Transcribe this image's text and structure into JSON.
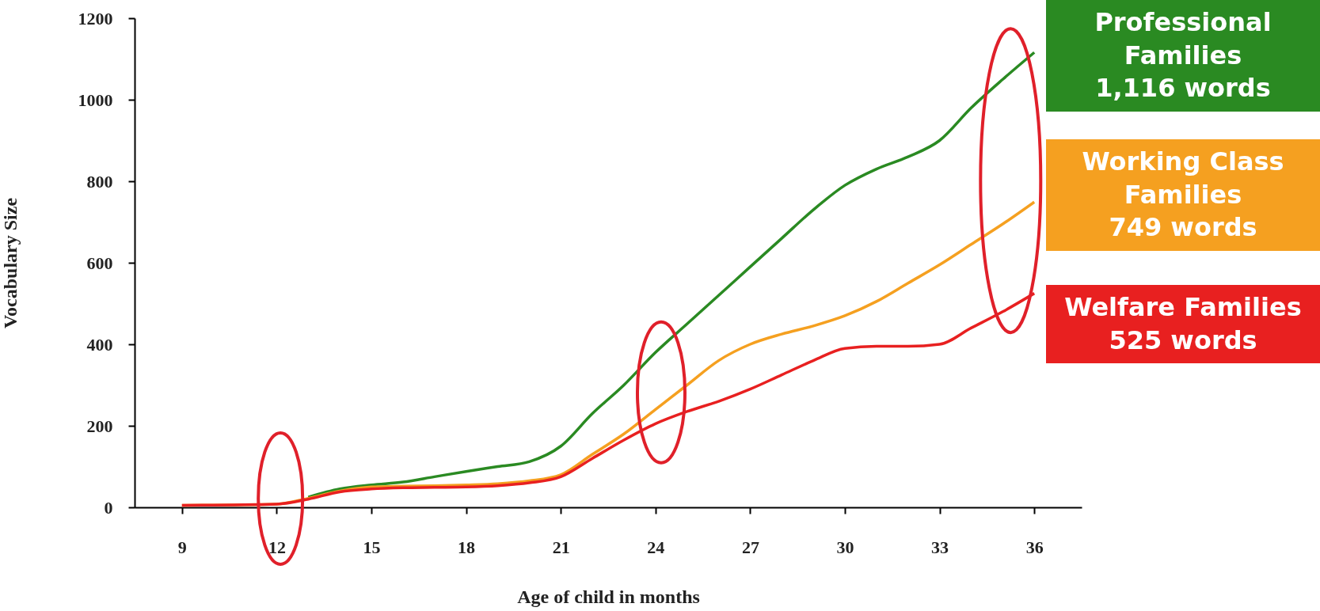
{
  "chart_data": {
    "type": "line",
    "xlabel": "Age of child in months",
    "ylabel": "Vocabulary Size",
    "x": [
      9,
      12,
      13,
      14,
      15,
      16,
      17,
      18,
      19,
      20,
      21,
      22,
      23,
      24,
      25,
      26,
      27,
      28,
      29,
      30,
      31,
      32,
      33,
      34,
      35,
      36
    ],
    "series": [
      {
        "name": "Professional Families",
        "color": "#2a8a22",
        "values": [
          null,
          null,
          25,
          45,
          55,
          62,
          75,
          88,
          100,
          112,
          150,
          230,
          300,
          380,
          450,
          520,
          590,
          660,
          730,
          790,
          830,
          860,
          900,
          980,
          1050,
          1116
        ]
      },
      {
        "name": "Working Class Families",
        "color": "#f5a020",
        "values": [
          5,
          8,
          22,
          40,
          50,
          52,
          53,
          55,
          58,
          65,
          80,
          130,
          180,
          240,
          300,
          360,
          400,
          425,
          445,
          470,
          505,
          550,
          595,
          645,
          695,
          749
        ]
      },
      {
        "name": "Welfare Families",
        "color": "#e82020",
        "values": [
          5,
          8,
          20,
          38,
          45,
          48,
          49,
          50,
          53,
          60,
          75,
          120,
          165,
          205,
          235,
          260,
          290,
          325,
          360,
          390,
          395,
          395,
          400,
          440,
          480,
          525
        ]
      }
    ],
    "annotations": [
      "1,116 words",
      "749 words",
      "525 words"
    ],
    "xlim": [
      7.5,
      37.5
    ],
    "xticks": [
      9,
      12,
      15,
      18,
      21,
      24,
      27,
      30,
      33,
      36
    ],
    "ylim": [
      0,
      1200
    ],
    "yticks": [
      0,
      200,
      400,
      600,
      800,
      1000,
      1200
    ],
    "grid": false,
    "marker": "none",
    "line_style": "solid"
  }
}
